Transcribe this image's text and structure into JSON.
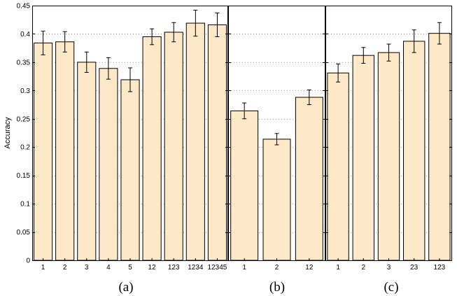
{
  "colors": {
    "bar_fill": "#fde9c8",
    "bar_edge": "#000000",
    "grid": "#9a9a9a",
    "error": "#000000"
  },
  "chart_data": [
    {
      "type": "bar",
      "panel_label": "(a)",
      "ylabel": "Accuracy",
      "ylim": [
        0,
        0.45
      ],
      "yticks": [
        0,
        0.05,
        0.1,
        0.15,
        0.2,
        0.25,
        0.3,
        0.35,
        0.4,
        0.45
      ],
      "ytick_labels": [
        "0",
        "0.05",
        "0.1",
        "0.15",
        "0.2",
        "0.25",
        "0.3",
        "0.35",
        "0.4",
        "0.45"
      ],
      "grid": "horizontal dotted",
      "categories": [
        "1",
        "2",
        "3",
        "4",
        "5",
        "12",
        "123",
        "1234",
        "12345"
      ],
      "values": [
        0.384,
        0.386,
        0.35,
        0.339,
        0.319,
        0.395,
        0.403,
        0.419,
        0.416
      ],
      "errors": [
        0.021,
        0.018,
        0.018,
        0.019,
        0.021,
        0.014,
        0.017,
        0.023,
        0.021
      ]
    },
    {
      "type": "bar",
      "panel_label": "(b)",
      "ylim": [
        0,
        0.45
      ],
      "grid": "horizontal dotted",
      "categories": [
        "1",
        "2",
        "12"
      ],
      "values": [
        0.264,
        0.214,
        0.288
      ],
      "errors": [
        0.014,
        0.01,
        0.013
      ]
    },
    {
      "type": "bar",
      "panel_label": "(c)",
      "ylim": [
        0,
        0.45
      ],
      "grid": "horizontal dotted",
      "categories": [
        "1",
        "2",
        "3",
        "23",
        "123"
      ],
      "values": [
        0.331,
        0.362,
        0.367,
        0.387,
        0.401
      ],
      "errors": [
        0.016,
        0.014,
        0.015,
        0.02,
        0.019
      ]
    }
  ]
}
